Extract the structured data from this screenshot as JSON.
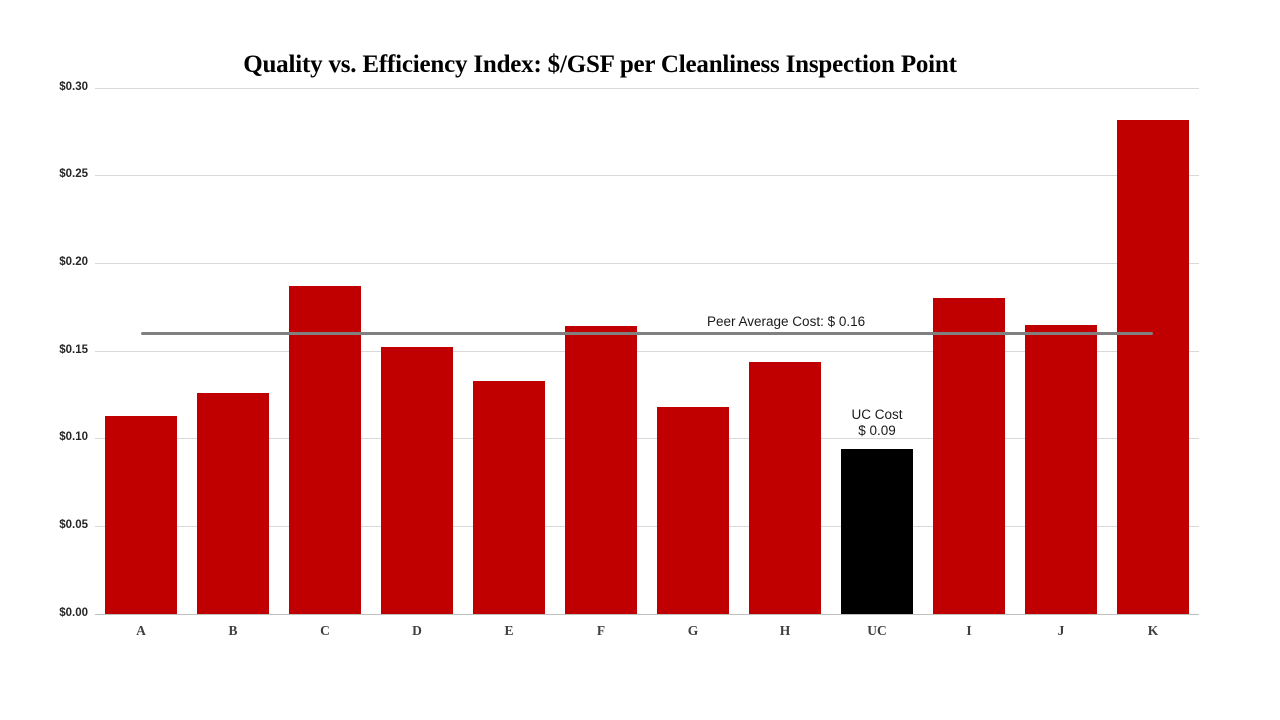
{
  "chart_data": {
    "type": "bar",
    "title": "Quality vs. Efficiency Index: $/GSF per Cleanliness Inspection Point",
    "categories": [
      "A",
      "B",
      "C",
      "D",
      "E",
      "F",
      "G",
      "H",
      "UC",
      "I",
      "J",
      "K"
    ],
    "values": [
      0.113,
      0.126,
      0.187,
      0.152,
      0.133,
      0.164,
      0.118,
      0.144,
      0.094,
      0.18,
      0.165,
      0.282
    ],
    "xlabel": "",
    "ylabel": "",
    "ylim": [
      0,
      0.3
    ],
    "ytick_step": 0.05,
    "ytick_labels": [
      "$0.00",
      "$0.05",
      "$0.10",
      "$0.15",
      "$0.20",
      "$0.25",
      "$0.30"
    ],
    "grid": true,
    "legend": "none",
    "reference_line": {
      "value": 0.16,
      "label": "Peer Average Cost: $ 0.16"
    },
    "annotation": {
      "target": "UC",
      "line1": "UC Cost",
      "line2": "$ 0.09"
    },
    "colors": {
      "bar_default": "#C00000",
      "bar_highlight": "#000000",
      "reference_line": "#808080",
      "gridline": "#D9D9D9",
      "axis_line": "#BFBFBF",
      "title_text": "#000000",
      "x_label_text": "#404040",
      "y_label_text": "#262626",
      "annotation_text": "#1A1A1A"
    }
  }
}
